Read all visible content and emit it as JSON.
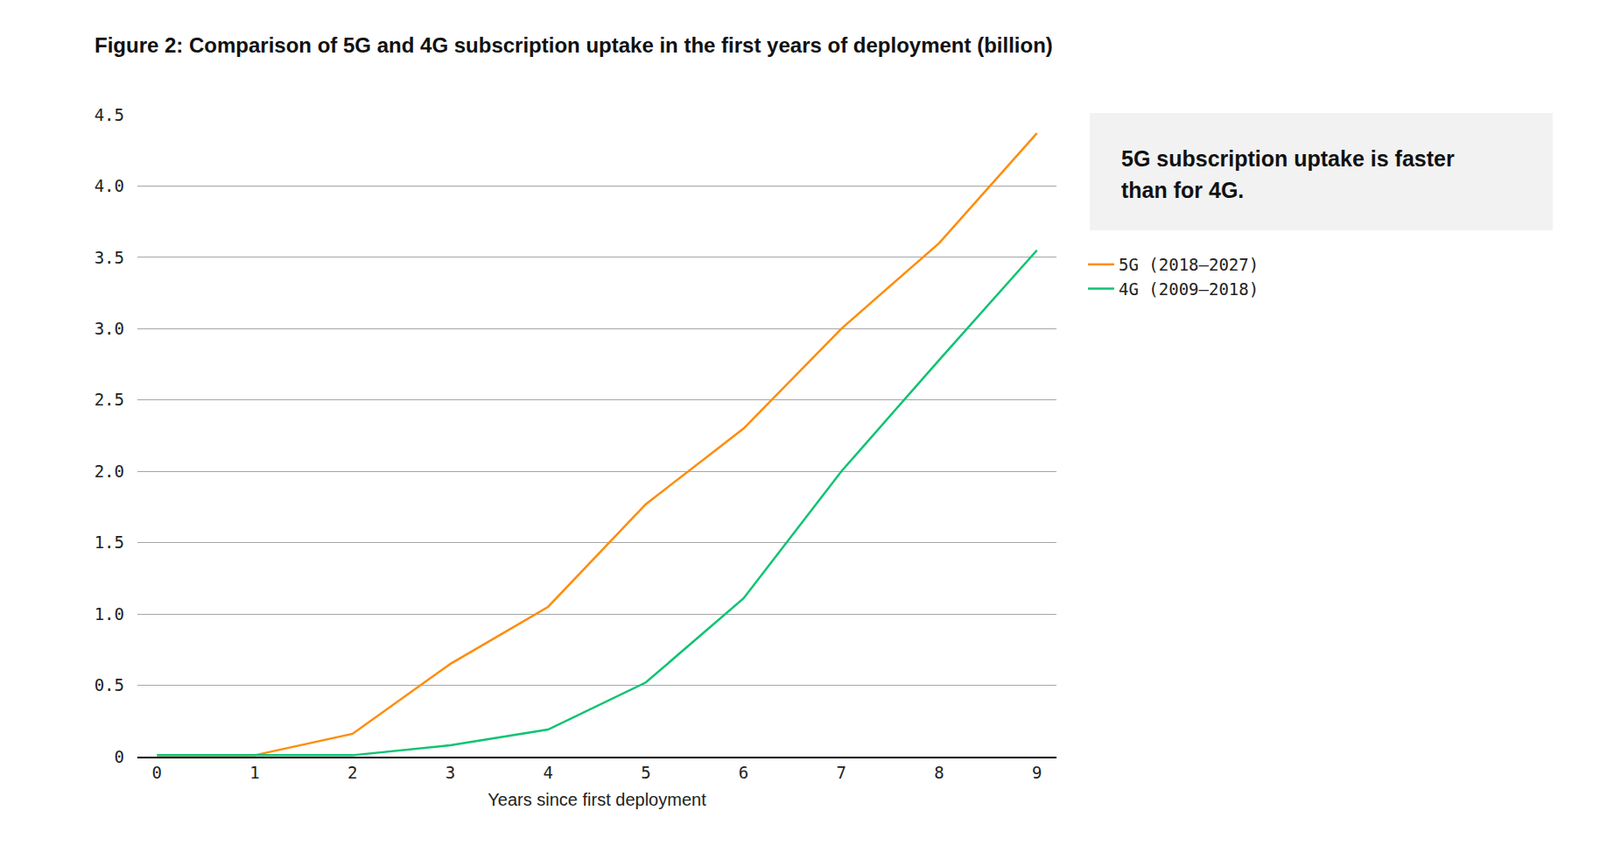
{
  "chart_data": {
    "type": "line",
    "title": "Figure 2: Comparison of 5G and 4G subscription uptake in the first years of deployment (billion)",
    "annotations": [
      "5G subscription uptake is faster than for 4G."
    ],
    "xlabel": "Years since first deployment",
    "x": [
      0,
      1,
      2,
      3,
      4,
      5,
      6,
      7,
      8,
      9
    ],
    "series": [
      {
        "name": "5G (2018–2027)",
        "color": "#ff8c0a",
        "values": [
          0.01,
          0.01,
          0.16,
          0.65,
          1.05,
          1.77,
          2.3,
          3.0,
          3.6,
          4.37
        ]
      },
      {
        "name": "4G (2009–2018)",
        "color": "#0fc373",
        "values": [
          0.01,
          0.01,
          0.01,
          0.08,
          0.19,
          0.52,
          1.11,
          2.0,
          2.78,
          3.55
        ]
      }
    ],
    "xlim": [
      -0.2,
      9.2
    ],
    "xticks": [
      0,
      1,
      2,
      3,
      4,
      5,
      6,
      7,
      8,
      9
    ],
    "ylim": [
      0,
      4.5
    ],
    "yticks": [
      0,
      0.5,
      {
        "value": 1,
        "label": "1.0"
      },
      1.5,
      {
        "value": 2,
        "label": "2.0"
      },
      2.5,
      {
        "value": 3,
        "label": "3.0"
      },
      3.5,
      {
        "value": 4,
        "label": "4.0"
      },
      4.5
    ],
    "grid": true,
    "legend": "right"
  }
}
